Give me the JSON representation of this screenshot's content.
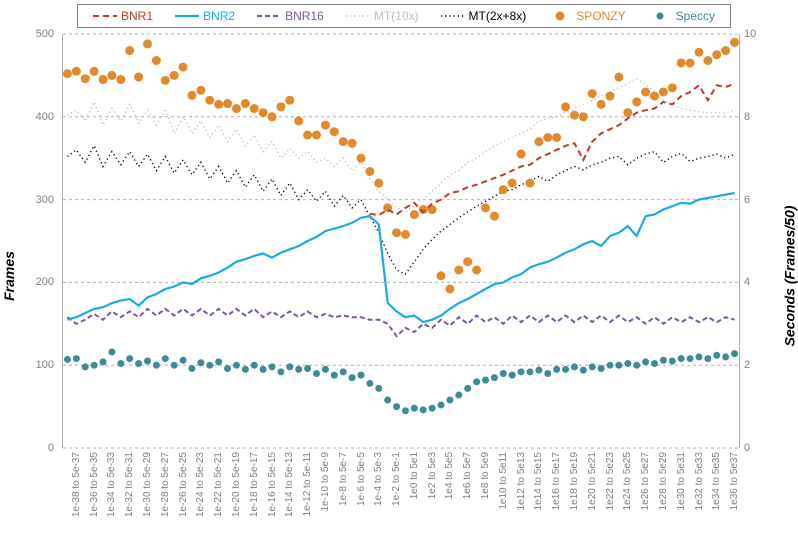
{
  "axes": {
    "y_left": {
      "label": "Frames",
      "min": 0,
      "max": 500,
      "step": 100
    },
    "y_right": {
      "label": "Seconds (Frames/50)",
      "min": 0,
      "max": 10,
      "step": 2
    },
    "grid_color": "#b0b0b0",
    "x_labels": [
      "1e-38 to 5e-37",
      "1e-36 to 5e-35",
      "1e-34 to 5e-33",
      "1e-32 to 5e-31",
      "1e-30 to 5e-29",
      "1e-28 to 5e-27",
      "1e-26 to 5e-25",
      "1e-24 to 5e-23",
      "1e-22 to 5e-21",
      "1e-20 to 5e-19",
      "1e-18 to 5e-17",
      "1e-16 to 5e-15",
      "1e-14 to 5e-13",
      "1e-12 to 5e-11",
      "1e-10 to 5e-9",
      "1e-8 to 5e-7",
      "1e-6 to 5e-5",
      "1e-4 to 5e-3",
      "1e-2 to 5e-1",
      "1e0 to 5e1",
      "1e2 to 5e3",
      "1e4 to 5e5",
      "1e6 to 5e7",
      "1e8 to 5e9",
      "1e10 to 5e11",
      "1e12 to 5e13",
      "1e14 to 5e15",
      "1e16 to 5e17",
      "1e18 to 5e19",
      "1e20 to 5e21",
      "1e22 to 5e23",
      "1e24 to 5e25",
      "1e26 to 5e27",
      "1e28 to 5e29",
      "1e30 to 5e31",
      "1e32 to 5e33",
      "1e34 to 5e35",
      "1e36 to 5e37"
    ]
  },
  "legend": [
    {
      "label": "BNR1",
      "type": "dash",
      "color": "#c0392b",
      "width": 2,
      "dash": "6,4"
    },
    {
      "label": "BNR2",
      "type": "line",
      "color": "#1ca9e6",
      "width": 2.2
    },
    {
      "label": "BNR16",
      "type": "dash",
      "color": "#7e57a3",
      "width": 2,
      "dash": "5,3"
    },
    {
      "label": "MT(10x)",
      "type": "dots",
      "color": "#bfbfbf",
      "width": 1.4,
      "dash": "1.2,3"
    },
    {
      "label": "MT(2x+8x)",
      "type": "dots",
      "color": "#000000",
      "width": 1.4,
      "dash": "1.2,3"
    },
    {
      "label": "SPONZY",
      "type": "marker",
      "color": "#e08a2d",
      "shape": "circle",
      "size": 4.5
    },
    {
      "label": "Speccy",
      "type": "marker",
      "color": "#3f8a99",
      "shape": "circle",
      "size": 3.5
    }
  ],
  "series": {
    "BNR1": {
      "color": "#c0392b",
      "width": 2,
      "dash": "6,4",
      "values": [
        null,
        null,
        null,
        null,
        null,
        null,
        null,
        null,
        null,
        null,
        null,
        null,
        null,
        null,
        null,
        null,
        null,
        null,
        null,
        null,
        null,
        null,
        null,
        null,
        null,
        null,
        null,
        null,
        null,
        null,
        null,
        null,
        null,
        null,
        283,
        281,
        288,
        282,
        290,
        296,
        285,
        295,
        300,
        308,
        310,
        315,
        318,
        322,
        326,
        330,
        335,
        340,
        342,
        350,
        355,
        360,
        365,
        368,
        348,
        370,
        380,
        385,
        390,
        398,
        405,
        408,
        410,
        418,
        415,
        425,
        430,
        438,
        420,
        438,
        436,
        440
      ]
    },
    "BNR2": {
      "color": "#1ca9e6",
      "width": 2.2,
      "dash": null,
      "values": [
        155,
        158,
        163,
        168,
        170,
        175,
        178,
        180,
        172,
        182,
        186,
        192,
        195,
        200,
        198,
        205,
        208,
        212,
        218,
        225,
        228,
        232,
        235,
        230,
        236,
        240,
        244,
        250,
        255,
        262,
        265,
        268,
        272,
        278,
        280,
        270,
        175,
        165,
        158,
        160,
        152,
        155,
        160,
        168,
        175,
        180,
        186,
        192,
        198,
        200,
        206,
        210,
        218,
        222,
        225,
        230,
        236,
        240,
        246,
        250,
        244,
        256,
        260,
        268,
        256,
        280,
        282,
        288,
        292,
        296,
        295,
        300,
        302,
        304,
        306,
        308
      ]
    },
    "BNR16": {
      "color": "#7e57a3",
      "width": 2,
      "dash": "5,3",
      "values": [
        158,
        150,
        155,
        162,
        155,
        165,
        158,
        165,
        158,
        168,
        160,
        168,
        160,
        168,
        160,
        168,
        160,
        168,
        160,
        168,
        160,
        168,
        158,
        165,
        158,
        165,
        158,
        165,
        158,
        162,
        158,
        160,
        158,
        158,
        155,
        155,
        150,
        135,
        145,
        140,
        150,
        145,
        155,
        148,
        158,
        150,
        160,
        152,
        158,
        150,
        160,
        152,
        160,
        152,
        160,
        152,
        160,
        152,
        160,
        152,
        160,
        152,
        160,
        152,
        158,
        150,
        158,
        150,
        158,
        152,
        158,
        152,
        158,
        152,
        158,
        155
      ]
    },
    "MT10x": {
      "color": "#bfbfbf",
      "width": 1.4,
      "dash": "1.2,3",
      "values": [
        402,
        408,
        395,
        418,
        390,
        410,
        395,
        415,
        392,
        408,
        390,
        410,
        380,
        400,
        380,
        395,
        375,
        390,
        370,
        385,
        365,
        378,
        358,
        370,
        350,
        362,
        350,
        358,
        345,
        350,
        340,
        350,
        335,
        345,
        325,
        310,
        300,
        290,
        285,
        292,
        300,
        310,
        320,
        330,
        335,
        345,
        350,
        358,
        365,
        370,
        375,
        380,
        385,
        395,
        398,
        400,
        405,
        410,
        415,
        420,
        425,
        430,
        435,
        440,
        445,
        440,
        430,
        420,
        415,
        410,
        408,
        406,
        405,
        405,
        405,
        408
      ]
    },
    "MT2x8x": {
      "color": "#000000",
      "width": 1.4,
      "dash": "1.2,3",
      "values": [
        352,
        360,
        345,
        365,
        340,
        358,
        342,
        358,
        340,
        355,
        335,
        352,
        332,
        348,
        330,
        345,
        325,
        340,
        320,
        335,
        315,
        330,
        310,
        325,
        305,
        320,
        300,
        312,
        298,
        310,
        292,
        305,
        290,
        300,
        280,
        260,
        235,
        215,
        210,
        225,
        240,
        252,
        262,
        270,
        278,
        285,
        292,
        298,
        304,
        310,
        312,
        318,
        322,
        328,
        322,
        330,
        335,
        340,
        336,
        342,
        345,
        350,
        352,
        342,
        350,
        355,
        358,
        345,
        352,
        356,
        346,
        350,
        352,
        355,
        350,
        355
      ]
    },
    "SPONZY": {
      "color": "#e08a2d",
      "size": 4.5,
      "values": [
        452,
        455,
        446,
        455,
        445,
        450,
        445,
        480,
        448,
        488,
        468,
        444,
        450,
        460,
        426,
        432,
        420,
        415,
        416,
        410,
        416,
        410,
        405,
        400,
        412,
        420,
        395,
        378,
        378,
        390,
        382,
        370,
        368,
        350,
        334,
        320,
        290,
        260,
        258,
        282,
        288,
        288,
        208,
        192,
        215,
        225,
        215,
        290,
        280,
        312,
        320,
        355,
        320,
        370,
        375,
        375,
        412,
        402,
        400,
        428,
        415,
        425,
        448,
        405,
        418,
        430,
        425,
        430,
        435,
        465,
        465,
        478,
        468,
        475,
        480,
        490
      ]
    },
    "Speccy": {
      "color": "#3f8a99",
      "size": 3.5,
      "values": [
        107,
        108,
        98,
        100,
        104,
        116,
        102,
        108,
        102,
        105,
        100,
        108,
        100,
        106,
        96,
        103,
        100,
        104,
        96,
        100,
        95,
        100,
        95,
        98,
        92,
        98,
        95,
        96,
        90,
        95,
        88,
        92,
        85,
        88,
        78,
        72,
        58,
        50,
        45,
        48,
        46,
        48,
        52,
        58,
        64,
        72,
        80,
        82,
        85,
        90,
        88,
        92,
        92,
        94,
        90,
        95,
        95,
        98,
        94,
        98,
        96,
        100,
        100,
        102,
        100,
        104,
        102,
        106,
        105,
        108,
        108,
        110,
        108,
        112,
        110,
        114
      ]
    }
  }
}
